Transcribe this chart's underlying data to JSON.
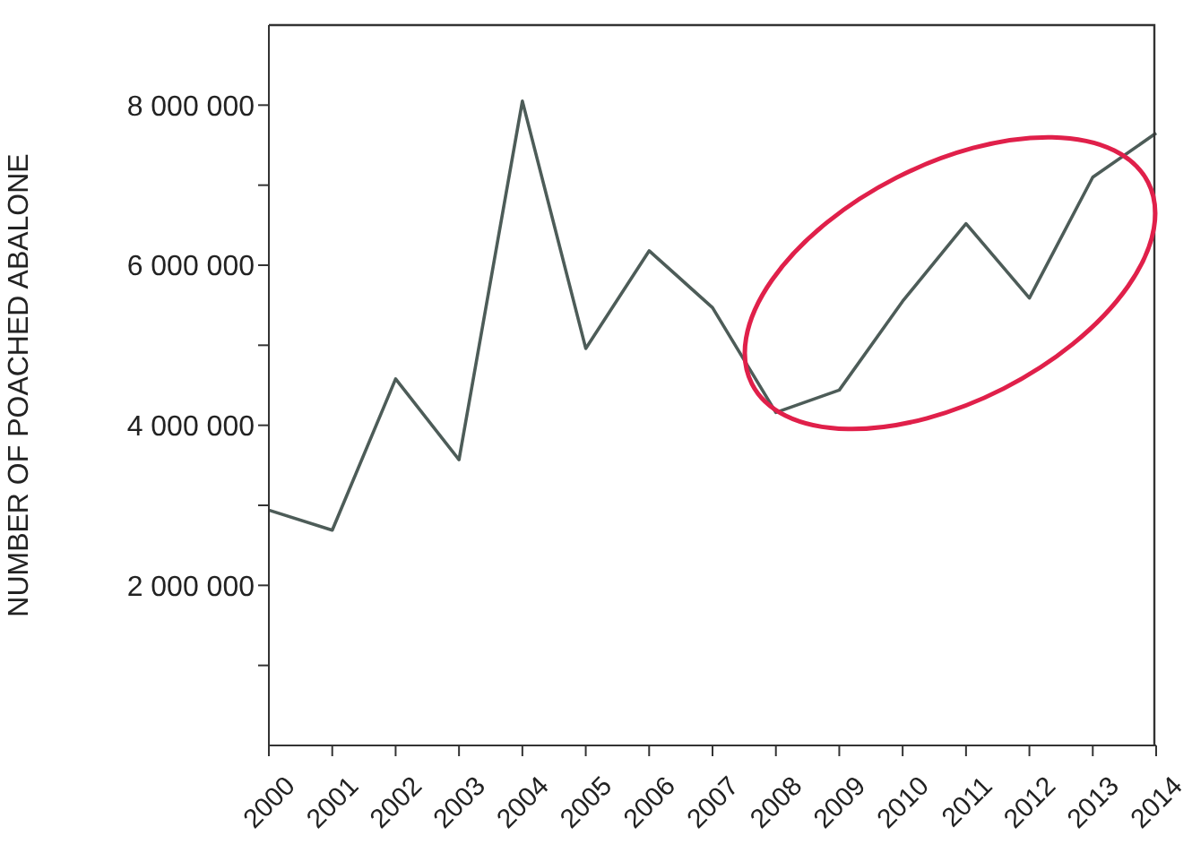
{
  "chart_data": {
    "type": "line",
    "ylabel": "NUMBER OF POACHED ABALONE",
    "categories": [
      "2000",
      "2001",
      "2002",
      "2003",
      "2004",
      "2005",
      "2006",
      "2007",
      "2008",
      "2009",
      "2010",
      "2011",
      "2012",
      "2013",
      "2014"
    ],
    "series": [
      {
        "color": "#4d5c58",
        "values": [
          2940000,
          2690000,
          4580000,
          3570000,
          8050000,
          4960000,
          6180000,
          5470000,
          4160000,
          4440000,
          5550000,
          6520000,
          5590000,
          7100000,
          7650000
        ]
      }
    ],
    "ylim": [
      0,
      9000000
    ],
    "yticks": [
      {
        "value": 1000000,
        "label": null
      },
      {
        "value": 2000000,
        "label": "2 000 000"
      },
      {
        "value": 3000000,
        "label": null
      },
      {
        "value": 4000000,
        "label": "4 000 000"
      },
      {
        "value": 5000000,
        "label": null
      },
      {
        "value": 6000000,
        "label": "6 000 000"
      },
      {
        "value": 7000000,
        "label": null
      },
      {
        "value": 8000000,
        "label": "8 000 000"
      }
    ],
    "grid": false,
    "legend": false,
    "marker": "none",
    "line_style": "solid"
  }
}
